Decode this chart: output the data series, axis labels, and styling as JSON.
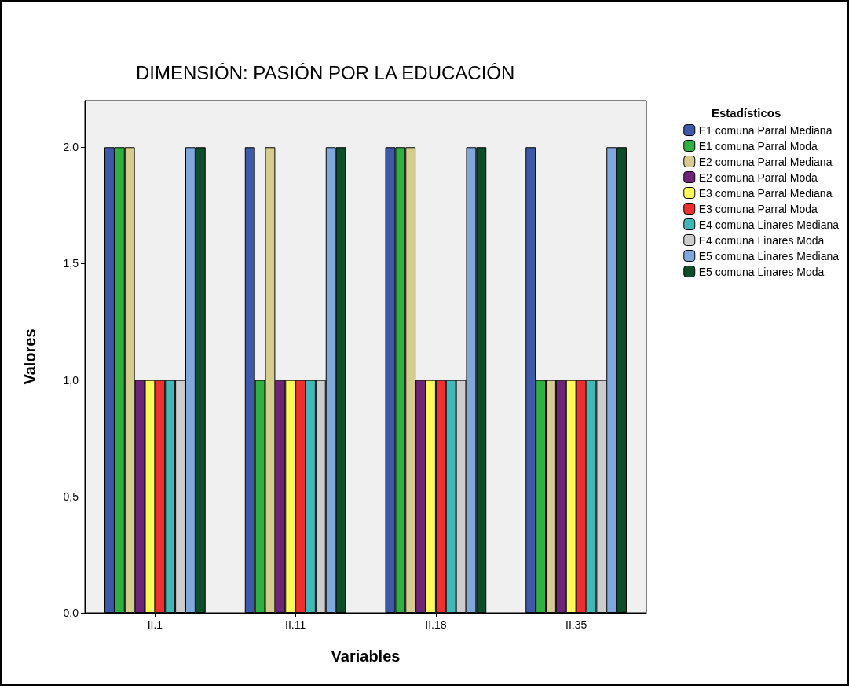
{
  "chart_data": {
    "type": "bar",
    "title": "DIMENSIÓN: PASIÓN POR LA EDUCACIÓN",
    "xlabel": "Variables",
    "ylabel": "Valores",
    "legend_title": "Estadísticos",
    "legend": "right",
    "grid": false,
    "categories": [
      "II.1",
      "II.11",
      "II.18",
      "II.35"
    ],
    "ylim": [
      0,
      2.2
    ],
    "yticks": [
      {
        "value": 0,
        "label": "0,0"
      },
      {
        "value": 0.5,
        "label": "0,5"
      },
      {
        "value": 1,
        "label": "1,0"
      },
      {
        "value": 1.5,
        "label": "1,5"
      },
      {
        "value": 2,
        "label": "2,0"
      }
    ],
    "series": [
      {
        "name": "E1 comuna Parral Mediana",
        "color": "#3e59a8",
        "values": [
          2,
          2,
          2,
          2
        ]
      },
      {
        "name": "E1 comuna Parral Moda",
        "color": "#30b040",
        "values": [
          2,
          1,
          2,
          1
        ]
      },
      {
        "name": "E2 comuna Parral Mediana",
        "color": "#d6cc90",
        "values": [
          2,
          2,
          2,
          1
        ]
      },
      {
        "name": "E2 comuna Parral Moda",
        "color": "#6e2577",
        "values": [
          1,
          1,
          1,
          1
        ]
      },
      {
        "name": "E3 comuna Parral Mediana",
        "color": "#fdfb5a",
        "values": [
          1,
          1,
          1,
          1
        ]
      },
      {
        "name": "E3 comuna Parral Moda",
        "color": "#ef3030",
        "values": [
          1,
          1,
          1,
          1
        ]
      },
      {
        "name": "E4 comuna Linares Mediana",
        "color": "#40b8b8",
        "values": [
          1,
          1,
          1,
          1
        ]
      },
      {
        "name": "E4 comuna Linares Moda",
        "color": "#cccccc",
        "values": [
          1,
          1,
          1,
          1
        ]
      },
      {
        "name": "E5 comuna Linares Mediana",
        "color": "#80a8dc",
        "values": [
          2,
          2,
          2,
          2
        ]
      },
      {
        "name": "E5 comuna Linares Moda",
        "color": "#0c4d2a",
        "values": [
          2,
          2,
          2,
          2
        ]
      }
    ]
  }
}
